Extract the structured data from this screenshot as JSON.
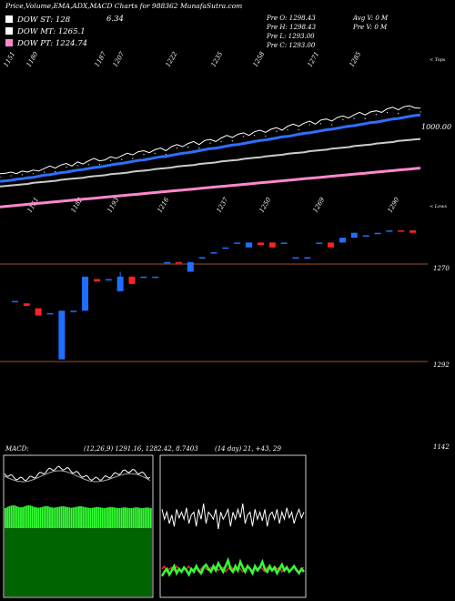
{
  "header": {
    "title": "Price,Volume,EMA,ADX,MACD Charts for 988362 MunafaSutra.com"
  },
  "legend": [
    {
      "label": "DOW ST: 128",
      "color": "#ffffff"
    },
    {
      "label": "DOW MT: 1265.1",
      "color": "#ffffff"
    },
    {
      "label": "DOW PT: 1224.74",
      "color": "#ff88cc"
    }
  ],
  "last_change": "6.34",
  "ohlc": {
    "open": "Pre   O: 1298.43",
    "high": "Pre   H: 1298.43",
    "low": "Pre   L: 1293.00",
    "close": "Pre   C: 1293.00",
    "avg_volume": "Avg V: 0   M",
    "prev_volume": "Pre   V: 0   M"
  },
  "ema_panel": {
    "top_labels": [
      "1151",
      "1180",
      "1187",
      "1207",
      "1222",
      "1235",
      "1258",
      "1271",
      "1285"
    ],
    "bottom_labels": [
      "1151",
      "1182",
      "1193",
      "1216",
      "1237",
      "1250",
      "1269",
      "1290"
    ],
    "right_top": "< Tops",
    "right_bottom": "< Lows",
    "level_label": "1000.00"
  },
  "price_panel": {
    "levels": [
      "1270",
      "1292"
    ],
    "bottom_label": "1142"
  },
  "macd_panel": {
    "header": "MACD:",
    "values": "(12,26,9) 1291.16,  1282.42,  8.7403"
  },
  "adx_panel": {
    "header": "(14 day) 21,  +43,  29"
  },
  "chart_data": [
    {
      "type": "line",
      "title": "EMA",
      "x": [
        0,
        1,
        2,
        3,
        4,
        5,
        6,
        7,
        8,
        9,
        10,
        11,
        12,
        13,
        14,
        15,
        16,
        17,
        18,
        19,
        20,
        21,
        22,
        23,
        24,
        25,
        26,
        27,
        28,
        29,
        30,
        31,
        32,
        33,
        34,
        35,
        36,
        37,
        38,
        39,
        40,
        41,
        42,
        43,
        44,
        45,
        46,
        47,
        48,
        49,
        50,
        51,
        52,
        53,
        54,
        55,
        56,
        57,
        58,
        59,
        60,
        61,
        62,
        63,
        64,
        65,
        66,
        67,
        68,
        69,
        70,
        71,
        72,
        73,
        74,
        75,
        76
      ],
      "series": [
        {
          "color": "#ffffff",
          "values": [
            1165,
            1166,
            1168,
            1165,
            1170,
            1168,
            1172,
            1170,
            1175,
            1180,
            1176,
            1182,
            1185,
            1180,
            1188,
            1184,
            1190,
            1195,
            1190,
            1192,
            1198,
            1195,
            1200,
            1205,
            1202,
            1208,
            1210,
            1206,
            1212,
            1215,
            1210,
            1218,
            1222,
            1218,
            1224,
            1228,
            1222,
            1230,
            1232,
            1228,
            1235,
            1240,
            1236,
            1242,
            1245,
            1240,
            1247,
            1250,
            1246,
            1252,
            1255,
            1250,
            1258,
            1262,
            1258,
            1264,
            1268,
            1262,
            1270,
            1272,
            1268,
            1275,
            1278,
            1274,
            1280,
            1285,
            1280,
            1286,
            1288,
            1285,
            1292,
            1295,
            1290,
            1296,
            1298,
            1294,
            1293
          ]
        },
        {
          "color": "#2f6fff",
          "values": [
            1150,
            1151,
            1152,
            1154,
            1155,
            1157,
            1158,
            1160,
            1162,
            1163,
            1165,
            1167,
            1168,
            1170,
            1172,
            1173,
            1175,
            1177,
            1178,
            1180,
            1182,
            1184,
            1185,
            1187,
            1189,
            1191,
            1192,
            1194,
            1196,
            1198,
            1199,
            1201,
            1203,
            1205,
            1206,
            1208,
            1210,
            1212,
            1214,
            1215,
            1217,
            1219,
            1221,
            1222,
            1224,
            1226,
            1228,
            1230,
            1231,
            1233,
            1235,
            1237,
            1238,
            1240,
            1242,
            1244,
            1245,
            1247,
            1249,
            1251,
            1252,
            1254,
            1256,
            1258,
            1259,
            1261,
            1263,
            1265,
            1266,
            1268,
            1270,
            1272,
            1273,
            1275,
            1277,
            1279,
            1280
          ]
        },
        {
          "color": "#cccccc",
          "values": [
            1140,
            1141,
            1142,
            1143,
            1144,
            1145,
            1147,
            1148,
            1149,
            1150,
            1151,
            1153,
            1154,
            1155,
            1156,
            1157,
            1159,
            1160,
            1161,
            1162,
            1164,
            1165,
            1166,
            1167,
            1169,
            1170,
            1171,
            1172,
            1174,
            1175,
            1176,
            1177,
            1179,
            1180,
            1181,
            1182,
            1184,
            1185,
            1186,
            1187,
            1189,
            1190,
            1191,
            1192,
            1194,
            1195,
            1196,
            1197,
            1199,
            1200,
            1201,
            1202,
            1204,
            1205,
            1206,
            1207,
            1209,
            1210,
            1211,
            1212,
            1214,
            1215,
            1216,
            1217,
            1219,
            1220,
            1221,
            1222,
            1224,
            1225,
            1226,
            1227,
            1229,
            1230,
            1231,
            1232,
            1233
          ]
        },
        {
          "color": "#ff88cc",
          "values": [
            1100,
            1101,
            1102,
            1103,
            1104,
            1105,
            1106,
            1107,
            1108,
            1109,
            1110,
            1111,
            1112,
            1113,
            1114,
            1115,
            1116,
            1117,
            1118,
            1119,
            1120,
            1121,
            1122,
            1123,
            1124,
            1125,
            1126,
            1127,
            1128,
            1129,
            1130,
            1131,
            1132,
            1133,
            1134,
            1135,
            1136,
            1137,
            1138,
            1139,
            1140,
            1141,
            1142,
            1143,
            1144,
            1145,
            1146,
            1147,
            1148,
            1149,
            1150,
            1151,
            1152,
            1153,
            1154,
            1155,
            1156,
            1157,
            1158,
            1159,
            1160,
            1161,
            1162,
            1163,
            1164,
            1165,
            1166,
            1167,
            1168,
            1169,
            1170,
            1171,
            1172,
            1173,
            1174,
            1175,
            1176
          ]
        }
      ]
    },
    {
      "type": "candlestick",
      "title": "Price",
      "candles": [
        {
          "o": 1254,
          "c": 1254,
          "h": 1254,
          "l": 1254,
          "up": true
        },
        {
          "o": 1252,
          "c": 1253,
          "h": 1253,
          "l": 1252,
          "up": false
        },
        {
          "o": 1251,
          "c": 1248,
          "h": 1251,
          "l": 1248,
          "up": false
        },
        {
          "o": 1249,
          "c": 1249,
          "h": 1249,
          "l": 1249,
          "up": true
        },
        {
          "o": 1230,
          "c": 1250,
          "h": 1250,
          "l": 1230,
          "up": true
        },
        {
          "o": 1250,
          "c": 1250,
          "h": 1250,
          "l": 1250,
          "up": true
        },
        {
          "o": 1250,
          "c": 1264,
          "h": 1264,
          "l": 1250,
          "up": true
        },
        {
          "o": 1263,
          "c": 1262,
          "h": 1263,
          "l": 1262,
          "up": false
        },
        {
          "o": 1263,
          "c": 1263,
          "h": 1263,
          "l": 1263,
          "up": true
        },
        {
          "o": 1258,
          "c": 1264,
          "h": 1266,
          "l": 1258,
          "up": true
        },
        {
          "o": 1261,
          "c": 1264,
          "h": 1264,
          "l": 1261,
          "up": false
        },
        {
          "o": 1264,
          "c": 1264,
          "h": 1264,
          "l": 1264,
          "up": true
        },
        {
          "o": 1264,
          "c": 1264,
          "h": 1264,
          "l": 1264,
          "up": true
        },
        {
          "o": 1270,
          "c": 1270,
          "h": 1270,
          "l": 1270,
          "up": true
        },
        {
          "o": 1270,
          "c": 1270,
          "h": 1270,
          "l": 1270,
          "up": false
        },
        {
          "o": 1266,
          "c": 1270,
          "h": 1270,
          "l": 1266,
          "up": true
        },
        {
          "o": 1272,
          "c": 1272,
          "h": 1272,
          "l": 1272,
          "up": true
        },
        {
          "o": 1274,
          "c": 1274,
          "h": 1274,
          "l": 1274,
          "up": true
        },
        {
          "o": 1276,
          "c": 1276,
          "h": 1276,
          "l": 1276,
          "up": true
        },
        {
          "o": 1278,
          "c": 1278,
          "h": 1278,
          "l": 1278,
          "up": true
        },
        {
          "o": 1276,
          "c": 1278,
          "h": 1278,
          "l": 1276,
          "up": true
        },
        {
          "o": 1278,
          "c": 1277,
          "h": 1278,
          "l": 1277,
          "up": false
        },
        {
          "o": 1276,
          "c": 1278,
          "h": 1278,
          "l": 1276,
          "up": false
        },
        {
          "o": 1278,
          "c": 1278,
          "h": 1278,
          "l": 1278,
          "up": true
        },
        {
          "o": 1272,
          "c": 1272,
          "h": 1272,
          "l": 1272,
          "up": true
        },
        {
          "o": 1272,
          "c": 1272,
          "h": 1272,
          "l": 1272,
          "up": true
        },
        {
          "o": 1278,
          "c": 1278,
          "h": 1278,
          "l": 1278,
          "up": true
        },
        {
          "o": 1276,
          "c": 1278,
          "h": 1278,
          "l": 1276,
          "up": false
        },
        {
          "o": 1278,
          "c": 1280,
          "h": 1280,
          "l": 1278,
          "up": true
        },
        {
          "o": 1280,
          "c": 1282,
          "h": 1282,
          "l": 1280,
          "up": true
        },
        {
          "o": 1281,
          "c": 1281,
          "h": 1281,
          "l": 1281,
          "up": true
        },
        {
          "o": 1282,
          "c": 1282,
          "h": 1282,
          "l": 1282,
          "up": true
        },
        {
          "o": 1283,
          "c": 1283,
          "h": 1283,
          "l": 1283,
          "up": true
        },
        {
          "o": 1283,
          "c": 1283,
          "h": 1283,
          "l": 1283,
          "up": false
        },
        {
          "o": 1283,
          "c": 1282,
          "h": 1283,
          "l": 1282,
          "up": false
        }
      ]
    },
    {
      "type": "bar",
      "title": "MACD histogram",
      "values": [
        0.55,
        0.58,
        0.6,
        0.62,
        0.63,
        0.62,
        0.6,
        0.58,
        0.57,
        0.58,
        0.6,
        0.62,
        0.63,
        0.62,
        0.6,
        0.58,
        0.57,
        0.56,
        0.57,
        0.58,
        0.6,
        0.61,
        0.6,
        0.58,
        0.57,
        0.56,
        0.57,
        0.58,
        0.59,
        0.6,
        0.6,
        0.59,
        0.58,
        0.57,
        0.56,
        0.57,
        0.58,
        0.59,
        0.6,
        0.6,
        0.59,
        0.58,
        0.57,
        0.56,
        0.55,
        0.56,
        0.57,
        0.58,
        0.58,
        0.57,
        0.56,
        0.55,
        0.56,
        0.57,
        0.58,
        0.58,
        0.57,
        0.56,
        0.55,
        0.55,
        0.56,
        0.57,
        0.57,
        0.56,
        0.55,
        0.55,
        0.56,
        0.57,
        0.57,
        0.56,
        0.55,
        0.55,
        0.56,
        0.57,
        0.56,
        0.55
      ]
    },
    {
      "type": "line",
      "title": "ADX",
      "series": [
        {
          "color": "#ffffff",
          "values": [
            0.62,
            0.55,
            0.6,
            0.52,
            0.58,
            0.5,
            0.62,
            0.56,
            0.6,
            0.55,
            0.63,
            0.52,
            0.58,
            0.6,
            0.5,
            0.62,
            0.55,
            0.66,
            0.52,
            0.6,
            0.58,
            0.55,
            0.62,
            0.48,
            0.6,
            0.55,
            0.58,
            0.62,
            0.5,
            0.6,
            0.55,
            0.62,
            0.56,
            0.66,
            0.52,
            0.58,
            0.6,
            0.5,
            0.62,
            0.55,
            0.6,
            0.54,
            0.62,
            0.5,
            0.58,
            0.6,
            0.55,
            0.62,
            0.52,
            0.6,
            0.55,
            0.63,
            0.56,
            0.6,
            0.52,
            0.58,
            0.62,
            0.56,
            0.6
          ]
        },
        {
          "color": "#ff3333",
          "values": [
            0.2,
            0.22,
            0.18,
            0.2,
            0.21,
            0.19,
            0.22,
            0.2,
            0.18,
            0.21,
            0.2,
            0.22,
            0.19,
            0.2,
            0.21,
            0.18,
            0.2,
            0.22,
            0.2,
            0.19,
            0.21,
            0.2,
            0.22,
            0.19,
            0.2,
            0.21,
            0.18,
            0.2,
            0.22,
            0.2,
            0.19,
            0.21,
            0.2,
            0.18,
            0.2,
            0.22,
            0.2,
            0.19,
            0.21,
            0.2,
            0.22,
            0.2,
            0.18,
            0.21,
            0.2,
            0.19,
            0.22,
            0.2,
            0.21,
            0.18,
            0.2,
            0.22,
            0.19,
            0.2,
            0.21,
            0.2,
            0.18,
            0.2,
            0.21
          ]
        },
        {
          "color": "#33ff33",
          "values": [
            0.15,
            0.18,
            0.2,
            0.16,
            0.19,
            0.22,
            0.17,
            0.2,
            0.18,
            0.21,
            0.19,
            0.16,
            0.2,
            0.18,
            0.22,
            0.19,
            0.17,
            0.21,
            0.23,
            0.2,
            0.18,
            0.22,
            0.19,
            0.24,
            0.21,
            0.18,
            0.22,
            0.26,
            0.2,
            0.18,
            0.22,
            0.19,
            0.25,
            0.21,
            0.18,
            0.22,
            0.2,
            0.17,
            0.22,
            0.19,
            0.21,
            0.25,
            0.2,
            0.18,
            0.22,
            0.19,
            0.21,
            0.17,
            0.2,
            0.23,
            0.19,
            0.21,
            0.18,
            0.2,
            0.22,
            0.19,
            0.17,
            0.2,
            0.18
          ]
        }
      ]
    }
  ]
}
